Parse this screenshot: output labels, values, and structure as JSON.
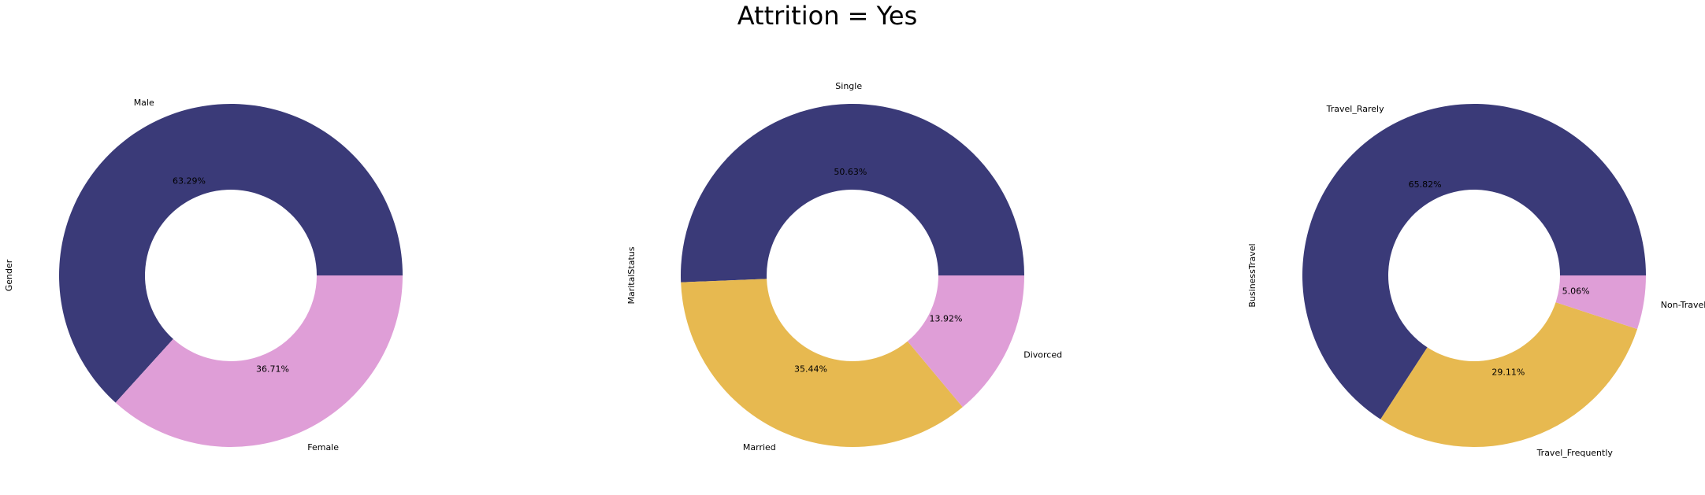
{
  "figure": {
    "title": "Attrition = Yes"
  },
  "chart_data": [
    {
      "type": "pie",
      "variant": "donut",
      "ylabel": "Gender",
      "categories": [
        "Male",
        "Female"
      ],
      "values": [
        63.29,
        36.71
      ],
      "value_labels": [
        "63.29%",
        "36.71%"
      ],
      "colors": [
        "#3a3a78",
        "#df9ed7"
      ]
    },
    {
      "type": "pie",
      "variant": "donut",
      "ylabel": "MaritalStatus",
      "categories": [
        "Single",
        "Married",
        "Divorced"
      ],
      "values": [
        50.63,
        35.44,
        13.92
      ],
      "value_labels": [
        "50.63%",
        "35.44%",
        "13.92%"
      ],
      "colors": [
        "#3a3a78",
        "#e7b950",
        "#df9ed7"
      ]
    },
    {
      "type": "pie",
      "variant": "donut",
      "ylabel": "BusinessTravel",
      "categories": [
        "Travel_Rarely",
        "Travel_Frequently",
        "Non-Travel"
      ],
      "values": [
        65.82,
        29.11,
        5.06
      ],
      "value_labels": [
        "65.82%",
        "29.11%",
        "5.06%"
      ],
      "colors": [
        "#3a3a78",
        "#e7b950",
        "#df9ed7"
      ]
    }
  ]
}
